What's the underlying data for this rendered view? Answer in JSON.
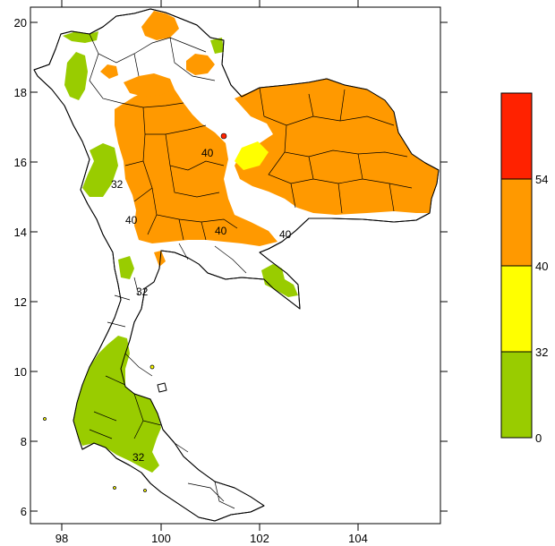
{
  "map": {
    "x_ticks": [
      "98",
      "100",
      "102",
      "104"
    ],
    "y_ticks": [
      "20",
      "18",
      "16",
      "14",
      "12",
      "10",
      "8",
      "6"
    ],
    "contour_labels": [
      "40",
      "40",
      "40",
      "40",
      "32",
      "32",
      "32"
    ],
    "colors": {
      "band_0_32": "#99cc00",
      "band_32_40": "#ffff00",
      "band_40_54": "#ff9900",
      "band_54_up": "#ff2200"
    }
  },
  "legend": {
    "labels": [
      "54",
      "40",
      "32",
      "0"
    ],
    "colors": [
      "#ff2200",
      "#ff9900",
      "#ffff00",
      "#99cc00"
    ]
  }
}
